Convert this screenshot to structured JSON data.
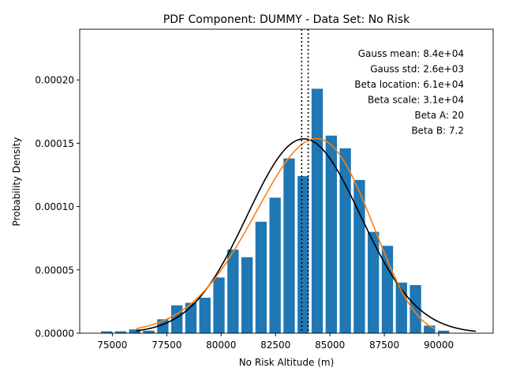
{
  "chart_data": {
    "type": "bar",
    "title": "PDF Component: DUMMY - Data Set: No Risk",
    "xlabel": "No Risk Altitude (m)",
    "ylabel": "Probability Density",
    "xlim": [
      73500,
      92500
    ],
    "ylim": [
      0,
      0.00024
    ],
    "x_ticks": [
      75000,
      77500,
      80000,
      82500,
      85000,
      87500,
      90000
    ],
    "x_tick_labels": [
      "75000",
      "77500",
      "80000",
      "82500",
      "85000",
      "87500",
      "90000"
    ],
    "y_ticks": [
      0,
      5e-05,
      0.0001,
      0.00015,
      0.0002
    ],
    "y_tick_labels": [
      "0.00000",
      "0.00005",
      "0.00010",
      "0.00015",
      "0.00020"
    ],
    "bar_color": "#1f77b4",
    "bar_width": 520,
    "bars": {
      "x": [
        74740,
        75385,
        76030,
        76675,
        77320,
        77965,
        78610,
        79255,
        79900,
        80545,
        81190,
        81835,
        82480,
        83125,
        83770,
        84415,
        85060,
        85705,
        86350,
        86995,
        87640,
        88285,
        88930,
        89575,
        90220
      ],
      "values": [
        1.5e-06,
        1.5e-06,
        3e-06,
        2e-06,
        1.1e-05,
        2.2e-05,
        2.4e-05,
        2.8e-05,
        4.4e-05,
        6.6e-05,
        6e-05,
        8.8e-05,
        0.000107,
        0.000138,
        0.000124,
        0.000193,
        0.000156,
        0.000146,
        0.000121,
        8e-05,
        6.9e-05,
        4e-05,
        3.8e-05,
        6e-06,
        2e-06
      ]
    },
    "series": [
      {
        "kind": "gauss",
        "color": "#000000",
        "mean": 83800,
        "std": 2600,
        "x_range": [
          76100,
          91700
        ]
      },
      {
        "kind": "beta",
        "color": "#ff7f0e",
        "location": 61000,
        "scale": 31000,
        "a": 20,
        "b": 7.2,
        "x_range": [
          76100,
          89800
        ]
      }
    ],
    "vlines": [
      {
        "x": 83700,
        "style": "dotted",
        "color": "#000000"
      },
      {
        "x": 84000,
        "style": "dotted",
        "color": "#000000"
      }
    ],
    "annotations": [
      "Gauss mean: 8.4e+04",
      "Gauss std: 2.6e+03",
      "Beta location: 6.1e+04",
      "Beta scale: 3.1e+04",
      "Beta A: 20",
      "Beta B: 7.2"
    ],
    "grid": false,
    "legend": "none"
  }
}
